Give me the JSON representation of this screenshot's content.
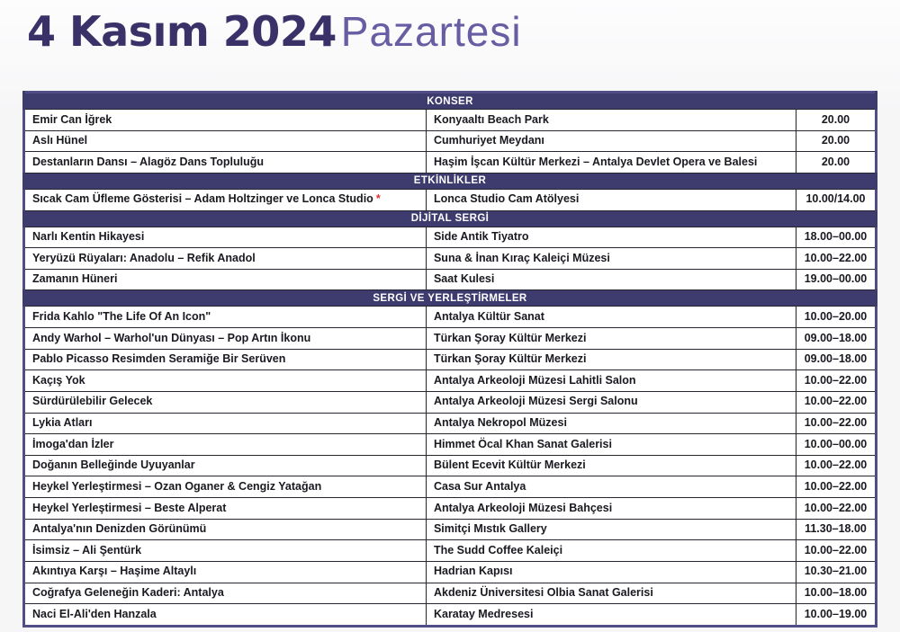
{
  "page": {
    "title_bold": "4 Kasım 2024",
    "title_light": "Pazartesi"
  },
  "colors": {
    "title_bold": "#3a3168",
    "title_light": "#665da2",
    "section_bar_bg": "#3e3b6e",
    "section_bar_text": "#ffffff",
    "table_outer_border": "#514e87",
    "row_text": "#191920",
    "asterisk": "#e03230",
    "page_bg": "#f7f7f8"
  },
  "table": {
    "columns": [
      "event",
      "venue",
      "time"
    ],
    "sections": [
      {
        "header": "KONSER",
        "rows": [
          {
            "event": "Emir Can İğrek",
            "venue": "Konyaaltı Beach Park",
            "time": "20.00"
          },
          {
            "event": "Aslı Hünel",
            "venue": "Cumhuriyet Meydanı",
            "time": "20.00"
          },
          {
            "event": "Destanların Dansı – Alagöz Dans Topluluğu",
            "venue": "Haşim İşcan Kültür Merkezi – Antalya Devlet Opera ve Balesi",
            "time": "20.00"
          }
        ]
      },
      {
        "header": "ETKİNLİKLER",
        "rows": [
          {
            "event": "Sıcak Cam Üfleme Gösterisi – Adam Holtzinger ve Lonca Studio",
            "note": "*",
            "venue": "Lonca Studio Cam Atölyesi",
            "time": "10.00/14.00"
          }
        ]
      },
      {
        "header": "DİJİTAL SERGİ",
        "rows": [
          {
            "event": "Narlı Kentin Hikayesi",
            "venue": "Side Antik Tiyatro",
            "time": "18.00–00.00"
          },
          {
            "event": "Yeryüzü Rüyaları: Anadolu – Refik Anadol",
            "venue": "Suna & İnan Kıraç Kaleiçi Müzesi",
            "time": "10.00–22.00"
          },
          {
            "event": "Zamanın Hüneri",
            "venue": "Saat Kulesi",
            "time": "19.00–00.00"
          }
        ]
      },
      {
        "header": "SERGİ VE YERLEŞTİRMELER",
        "rows": [
          {
            "event": "Frida Kahlo \"The Life Of An Icon\"",
            "venue": "Antalya Kültür Sanat",
            "time": "10.00–20.00"
          },
          {
            "event": "Andy Warhol – Warhol'un Dünyası – Pop Artın İkonu",
            "venue": "Türkan Şoray Kültür Merkezi",
            "time": "09.00–18.00"
          },
          {
            "event": "Pablo Picasso Resimden Seramiğe Bir Serüven",
            "venue": "Türkan Şoray Kültür Merkezi",
            "time": "09.00–18.00"
          },
          {
            "event": "Kaçış Yok",
            "venue": "Antalya Arkeoloji Müzesi Lahitli Salon",
            "time": "10.00–22.00"
          },
          {
            "event": "Sürdürülebilir Gelecek",
            "venue": "Antalya Arkeoloji Müzesi Sergi Salonu",
            "time": "10.00–22.00"
          },
          {
            "event": "Lykia Atları",
            "venue": "Antalya Nekropol Müzesi",
            "time": "10.00–22.00"
          },
          {
            "event": "İmoga'dan İzler",
            "venue": "Himmet Öcal Khan Sanat Galerisi",
            "time": "10.00–00.00"
          },
          {
            "event": "Doğanın Belleğinde Uyuyanlar",
            "venue": "Bülent Ecevit Kültür Merkezi",
            "time": "10.00–22.00"
          },
          {
            "event": "Heykel Yerleştirmesi – Ozan Oganer & Cengiz Yatağan",
            "venue": "Casa Sur Antalya",
            "time": "10.00–22.00"
          },
          {
            "event": "Heykel Yerleştirmesi – Beste Alperat",
            "venue": "Antalya Arkeoloji Müzesi Bahçesi",
            "time": "10.00–22.00"
          },
          {
            "event": "Antalya'nın Denizden Görünümü",
            "venue": "Simitçi Mıstık Gallery",
            "time": "11.30–18.00"
          },
          {
            "event": "İsimsiz – Ali Şentürk",
            "venue": "The Sudd Coffee Kaleiçi",
            "time": "10.00–22.00"
          },
          {
            "event": "Akıntıya Karşı – Haşime Altaylı",
            "venue": "Hadrian Kapısı",
            "time": "10.30–21.00"
          },
          {
            "event": "Coğrafya Geleneğin Kaderi: Antalya",
            "venue": "Akdeniz Üniversitesi Olbia Sanat Galerisi",
            "time": "10.00–18.00"
          },
          {
            "event": "Naci El-Ali'den Hanzala",
            "venue": "Karatay Medresesi",
            "time": "10.00–19.00"
          }
        ]
      }
    ]
  }
}
